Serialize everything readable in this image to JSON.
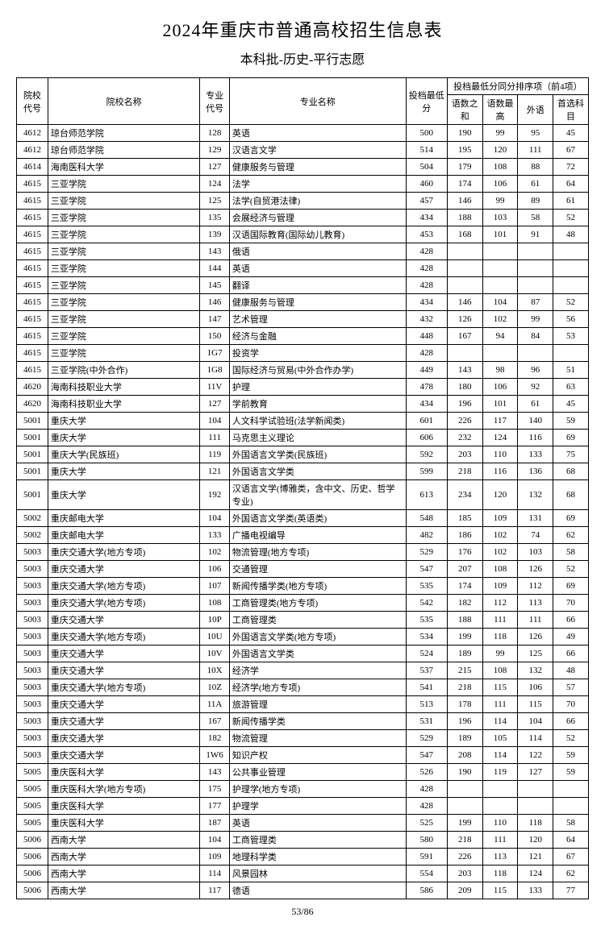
{
  "title": "2024年重庆市普通高校招生信息表",
  "subtitle": "本科批-历史-平行志愿",
  "page_number": "53/86",
  "headers": {
    "school_code": "院校代号",
    "school_name": "院校名称",
    "major_code": "专业代号",
    "major_name": "专业名称",
    "min_score": "投档最低分",
    "tiebreak_group": "投档最低分同分排序项（前4项）",
    "sub1": "语数之和",
    "sub2": "语数最高",
    "sub3": "外语",
    "sub4": "首选科目"
  },
  "rows": [
    {
      "sc": "4612",
      "sn": "琼台师范学院",
      "mc": "128",
      "mn": "英语",
      "s": "500",
      "a": "190",
      "b": "99",
      "c": "95",
      "d": "45"
    },
    {
      "sc": "4612",
      "sn": "琼台师范学院",
      "mc": "129",
      "mn": "汉语言文学",
      "s": "514",
      "a": "195",
      "b": "120",
      "c": "111",
      "d": "67"
    },
    {
      "sc": "4614",
      "sn": "海南医科大学",
      "mc": "127",
      "mn": "健康服务与管理",
      "s": "504",
      "a": "179",
      "b": "108",
      "c": "88",
      "d": "72"
    },
    {
      "sc": "4615",
      "sn": "三亚学院",
      "mc": "124",
      "mn": "法学",
      "s": "460",
      "a": "174",
      "b": "106",
      "c": "61",
      "d": "64"
    },
    {
      "sc": "4615",
      "sn": "三亚学院",
      "mc": "125",
      "mn": "法学(自贸港法律)",
      "s": "457",
      "a": "146",
      "b": "99",
      "c": "89",
      "d": "61"
    },
    {
      "sc": "4615",
      "sn": "三亚学院",
      "mc": "135",
      "mn": "会展经济与管理",
      "s": "434",
      "a": "188",
      "b": "103",
      "c": "58",
      "d": "52"
    },
    {
      "sc": "4615",
      "sn": "三亚学院",
      "mc": "139",
      "mn": "汉语国际教育(国际幼儿教育)",
      "s": "453",
      "a": "168",
      "b": "101",
      "c": "91",
      "d": "48"
    },
    {
      "sc": "4615",
      "sn": "三亚学院",
      "mc": "143",
      "mn": "俄语",
      "s": "428",
      "a": "",
      "b": "",
      "c": "",
      "d": ""
    },
    {
      "sc": "4615",
      "sn": "三亚学院",
      "mc": "144",
      "mn": "英语",
      "s": "428",
      "a": "",
      "b": "",
      "c": "",
      "d": ""
    },
    {
      "sc": "4615",
      "sn": "三亚学院",
      "mc": "145",
      "mn": "翻译",
      "s": "428",
      "a": "",
      "b": "",
      "c": "",
      "d": ""
    },
    {
      "sc": "4615",
      "sn": "三亚学院",
      "mc": "146",
      "mn": "健康服务与管理",
      "s": "434",
      "a": "146",
      "b": "104",
      "c": "87",
      "d": "52"
    },
    {
      "sc": "4615",
      "sn": "三亚学院",
      "mc": "147",
      "mn": "艺术管理",
      "s": "432",
      "a": "126",
      "b": "102",
      "c": "99",
      "d": "56"
    },
    {
      "sc": "4615",
      "sn": "三亚学院",
      "mc": "150",
      "mn": "经济与金融",
      "s": "448",
      "a": "167",
      "b": "94",
      "c": "84",
      "d": "53"
    },
    {
      "sc": "4615",
      "sn": "三亚学院",
      "mc": "1G7",
      "mn": "投资学",
      "s": "428",
      "a": "",
      "b": "",
      "c": "",
      "d": ""
    },
    {
      "sc": "4615",
      "sn": "三亚学院(中外合作)",
      "mc": "1G8",
      "mn": "国际经济与贸易(中外合作办学)",
      "s": "449",
      "a": "143",
      "b": "98",
      "c": "96",
      "d": "51"
    },
    {
      "sc": "4620",
      "sn": "海南科技职业大学",
      "mc": "11V",
      "mn": "护理",
      "s": "478",
      "a": "180",
      "b": "106",
      "c": "92",
      "d": "63"
    },
    {
      "sc": "4620",
      "sn": "海南科技职业大学",
      "mc": "127",
      "mn": "学前教育",
      "s": "434",
      "a": "196",
      "b": "101",
      "c": "61",
      "d": "45"
    },
    {
      "sc": "5001",
      "sn": "重庆大学",
      "mc": "104",
      "mn": "人文科学试验班(法学新闻类)",
      "s": "601",
      "a": "226",
      "b": "117",
      "c": "140",
      "d": "59"
    },
    {
      "sc": "5001",
      "sn": "重庆大学",
      "mc": "111",
      "mn": "马克思主义理论",
      "s": "606",
      "a": "232",
      "b": "124",
      "c": "116",
      "d": "69"
    },
    {
      "sc": "5001",
      "sn": "重庆大学(民族班)",
      "mc": "119",
      "mn": "外国语言文学类(民族班)",
      "s": "592",
      "a": "203",
      "b": "110",
      "c": "133",
      "d": "75"
    },
    {
      "sc": "5001",
      "sn": "重庆大学",
      "mc": "121",
      "mn": "外国语言文学类",
      "s": "599",
      "a": "218",
      "b": "116",
      "c": "136",
      "d": "68"
    },
    {
      "sc": "5001",
      "sn": "重庆大学",
      "mc": "192",
      "mn": "汉语言文学(博雅类，含中文、历史、哲学专业)",
      "s": "613",
      "a": "234",
      "b": "120",
      "c": "132",
      "d": "68"
    },
    {
      "sc": "5002",
      "sn": "重庆邮电大学",
      "mc": "104",
      "mn": "外国语言文学类(英语类)",
      "s": "548",
      "a": "185",
      "b": "109",
      "c": "131",
      "d": "69"
    },
    {
      "sc": "5002",
      "sn": "重庆邮电大学",
      "mc": "133",
      "mn": "广播电视编导",
      "s": "482",
      "a": "186",
      "b": "102",
      "c": "74",
      "d": "62"
    },
    {
      "sc": "5003",
      "sn": "重庆交通大学(地方专项)",
      "mc": "102",
      "mn": "物流管理(地方专项)",
      "s": "529",
      "a": "176",
      "b": "102",
      "c": "103",
      "d": "58"
    },
    {
      "sc": "5003",
      "sn": "重庆交通大学",
      "mc": "106",
      "mn": "交通管理",
      "s": "547",
      "a": "207",
      "b": "108",
      "c": "126",
      "d": "52"
    },
    {
      "sc": "5003",
      "sn": "重庆交通大学(地方专项)",
      "mc": "107",
      "mn": "新闻传播学类(地方专项)",
      "s": "535",
      "a": "174",
      "b": "109",
      "c": "112",
      "d": "69"
    },
    {
      "sc": "5003",
      "sn": "重庆交通大学(地方专项)",
      "mc": "108",
      "mn": "工商管理类(地方专项)",
      "s": "542",
      "a": "182",
      "b": "112",
      "c": "113",
      "d": "70"
    },
    {
      "sc": "5003",
      "sn": "重庆交通大学",
      "mc": "10P",
      "mn": "工商管理类",
      "s": "535",
      "a": "188",
      "b": "111",
      "c": "111",
      "d": "66"
    },
    {
      "sc": "5003",
      "sn": "重庆交通大学(地方专项)",
      "mc": "10U",
      "mn": "外国语言文学类(地方专项)",
      "s": "534",
      "a": "199",
      "b": "118",
      "c": "126",
      "d": "49"
    },
    {
      "sc": "5003",
      "sn": "重庆交通大学",
      "mc": "10V",
      "mn": "外国语言文学类",
      "s": "524",
      "a": "189",
      "b": "99",
      "c": "125",
      "d": "66"
    },
    {
      "sc": "5003",
      "sn": "重庆交通大学",
      "mc": "10X",
      "mn": "经济学",
      "s": "537",
      "a": "215",
      "b": "108",
      "c": "132",
      "d": "48"
    },
    {
      "sc": "5003",
      "sn": "重庆交通大学(地方专项)",
      "mc": "10Z",
      "mn": "经济学(地方专项)",
      "s": "541",
      "a": "218",
      "b": "115",
      "c": "106",
      "d": "57"
    },
    {
      "sc": "5003",
      "sn": "重庆交通大学",
      "mc": "11A",
      "mn": "旅游管理",
      "s": "513",
      "a": "178",
      "b": "111",
      "c": "115",
      "d": "70"
    },
    {
      "sc": "5003",
      "sn": "重庆交通大学",
      "mc": "167",
      "mn": "新闻传播学类",
      "s": "531",
      "a": "196",
      "b": "114",
      "c": "104",
      "d": "66"
    },
    {
      "sc": "5003",
      "sn": "重庆交通大学",
      "mc": "182",
      "mn": "物流管理",
      "s": "529",
      "a": "189",
      "b": "105",
      "c": "114",
      "d": "52"
    },
    {
      "sc": "5003",
      "sn": "重庆交通大学",
      "mc": "1W6",
      "mn": "知识产权",
      "s": "547",
      "a": "208",
      "b": "114",
      "c": "122",
      "d": "59"
    },
    {
      "sc": "5005",
      "sn": "重庆医科大学",
      "mc": "143",
      "mn": "公共事业管理",
      "s": "526",
      "a": "190",
      "b": "119",
      "c": "127",
      "d": "59"
    },
    {
      "sc": "5005",
      "sn": "重庆医科大学(地方专项)",
      "mc": "175",
      "mn": "护理学(地方专项)",
      "s": "428",
      "a": "",
      "b": "",
      "c": "",
      "d": ""
    },
    {
      "sc": "5005",
      "sn": "重庆医科大学",
      "mc": "177",
      "mn": "护理学",
      "s": "428",
      "a": "",
      "b": "",
      "c": "",
      "d": ""
    },
    {
      "sc": "5005",
      "sn": "重庆医科大学",
      "mc": "187",
      "mn": "英语",
      "s": "525",
      "a": "199",
      "b": "110",
      "c": "118",
      "d": "58"
    },
    {
      "sc": "5006",
      "sn": "西南大学",
      "mc": "104",
      "mn": "工商管理类",
      "s": "580",
      "a": "218",
      "b": "111",
      "c": "120",
      "d": "64"
    },
    {
      "sc": "5006",
      "sn": "西南大学",
      "mc": "109",
      "mn": "地理科学类",
      "s": "591",
      "a": "226",
      "b": "113",
      "c": "121",
      "d": "67"
    },
    {
      "sc": "5006",
      "sn": "西南大学",
      "mc": "114",
      "mn": "风景园林",
      "s": "554",
      "a": "203",
      "b": "118",
      "c": "124",
      "d": "62"
    },
    {
      "sc": "5006",
      "sn": "西南大学",
      "mc": "117",
      "mn": "德语",
      "s": "586",
      "a": "209",
      "b": "115",
      "c": "133",
      "d": "77"
    }
  ]
}
